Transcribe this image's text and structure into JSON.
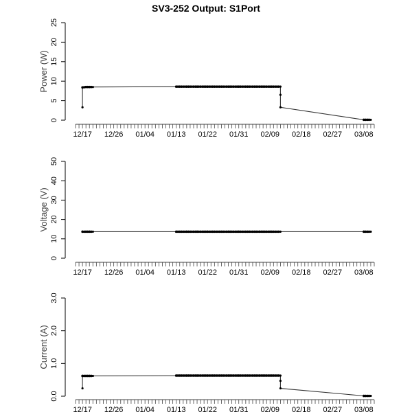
{
  "title": "SV3-252 Output: S1Port",
  "x_ticks": [
    "12/17",
    "12/26",
    "01/04",
    "01/13",
    "01/22",
    "01/31",
    "02/09",
    "02/18",
    "02/27",
    "03/08"
  ],
  "chart_data": [
    {
      "type": "line",
      "ylabel": "Power (W)",
      "ylim": [
        0,
        25
      ],
      "yticks": [
        "0",
        "5",
        "10",
        "15",
        "20",
        "25"
      ],
      "ytick_values": [
        0,
        5,
        10,
        15,
        20,
        25
      ],
      "xlim": [
        "12/15",
        "03/11"
      ],
      "series": [
        {
          "x": [
            "12/17",
            "12/17",
            "12/18",
            "12/19",
            "12/20",
            "01/13",
            "01/16",
            "01/19",
            "01/22",
            "01/25",
            "01/28",
            "01/31",
            "02/03",
            "02/06",
            "02/09",
            "02/11",
            "02/12",
            "02/12",
            "02/12",
            "03/08",
            "03/10"
          ],
          "y": [
            3.3,
            8.4,
            8.5,
            8.5,
            8.5,
            8.6,
            8.6,
            8.6,
            8.6,
            8.6,
            8.6,
            8.6,
            8.6,
            8.6,
            8.6,
            8.6,
            8.6,
            6.5,
            3.3,
            0.1,
            0.1
          ]
        }
      ]
    },
    {
      "type": "line",
      "ylabel": "Voltage (V)",
      "ylim": [
        0,
        50
      ],
      "yticks": [
        "0",
        "10",
        "20",
        "30",
        "40",
        "50"
      ],
      "ytick_values": [
        0,
        10,
        20,
        30,
        40,
        50
      ],
      "xlim": [
        "12/15",
        "03/11"
      ],
      "series": [
        {
          "x": [
            "12/17",
            "12/18",
            "12/19",
            "12/20",
            "01/13",
            "01/16",
            "01/19",
            "01/22",
            "01/25",
            "01/28",
            "01/31",
            "02/03",
            "02/06",
            "02/09",
            "02/12",
            "03/08",
            "03/10"
          ],
          "y": [
            13.7,
            13.7,
            13.7,
            13.7,
            13.7,
            13.7,
            13.7,
            13.7,
            13.7,
            13.7,
            13.7,
            13.7,
            13.7,
            13.7,
            13.7,
            13.7,
            13.7
          ]
        }
      ]
    },
    {
      "type": "line",
      "ylabel": "Current (A)",
      "ylim": [
        0,
        3
      ],
      "yticks": [
        "0.0",
        "1.0",
        "2.0",
        "3.0"
      ],
      "ytick_values": [
        0,
        1,
        2,
        3
      ],
      "xlim": [
        "12/15",
        "03/11"
      ],
      "series": [
        {
          "x": [
            "12/17",
            "12/17",
            "12/18",
            "12/19",
            "12/20",
            "01/13",
            "01/16",
            "01/19",
            "01/22",
            "01/25",
            "01/28",
            "01/31",
            "02/03",
            "02/06",
            "02/09",
            "02/11",
            "02/12",
            "02/12",
            "02/12",
            "03/08",
            "03/10"
          ],
          "y": [
            0.24,
            0.62,
            0.62,
            0.62,
            0.62,
            0.63,
            0.63,
            0.63,
            0.63,
            0.63,
            0.63,
            0.63,
            0.63,
            0.63,
            0.63,
            0.63,
            0.63,
            0.47,
            0.24,
            0.01,
            0.01
          ]
        }
      ]
    }
  ]
}
